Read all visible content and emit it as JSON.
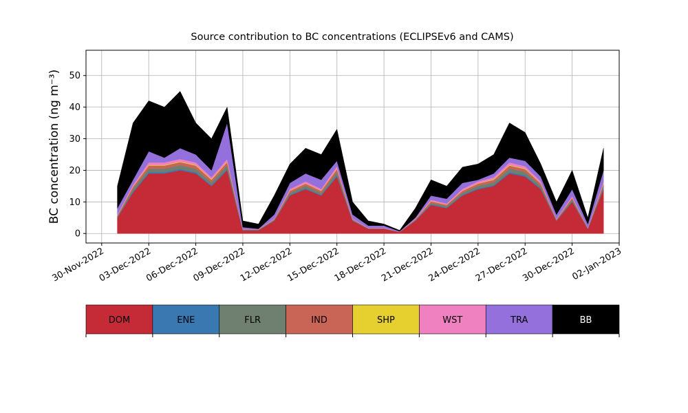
{
  "chart_data": {
    "type": "stacked_area",
    "title": "Source contribution to BC concentrations (ECLIPSEv6 and CAMS)",
    "y_label": "BC concentration (ng m⁻³)",
    "x": [
      "2022-12-01",
      "2022-12-02",
      "2022-12-03",
      "2022-12-04",
      "2022-12-05",
      "2022-12-06",
      "2022-12-07",
      "2022-12-08",
      "2022-12-09",
      "2022-12-10",
      "2022-12-11",
      "2022-12-12",
      "2022-12-13",
      "2022-12-14",
      "2022-12-15",
      "2022-12-16",
      "2022-12-17",
      "2022-12-18",
      "2022-12-19",
      "2022-12-20",
      "2022-12-21",
      "2022-12-22",
      "2022-12-23",
      "2022-12-24",
      "2022-12-25",
      "2022-12-26",
      "2022-12-27",
      "2022-12-28",
      "2022-12-29",
      "2022-12-30",
      "2022-12-31",
      "2023-01-01"
    ],
    "series": [
      {
        "name": "DOM",
        "color": "#c42b37",
        "values": [
          5,
          13,
          19,
          19,
          20,
          19,
          15,
          20,
          1,
          1,
          4,
          12,
          14,
          12,
          18,
          4,
          1.5,
          1.5,
          0.5,
          4,
          9,
          8,
          12,
          14,
          15,
          19,
          18,
          14,
          4,
          10,
          1.5,
          14
        ]
      },
      {
        "name": "ENE",
        "color": "#3a78b1",
        "values": [
          0.1,
          0.3,
          0.4,
          0.4,
          0.4,
          0.4,
          0.3,
          0.4,
          0.1,
          0.1,
          0.1,
          0.2,
          0.3,
          0.2,
          0.4,
          0.1,
          0,
          0,
          0,
          0.1,
          0.2,
          0.2,
          0.2,
          0.3,
          0.3,
          0.4,
          0.4,
          0.3,
          0.1,
          0.2,
          0,
          0.3
        ]
      },
      {
        "name": "FLR",
        "color": "#6f8070",
        "values": [
          0.3,
          0.8,
          1.1,
          1.1,
          1.2,
          1.1,
          0.9,
          1.2,
          0.1,
          0.1,
          0.2,
          0.7,
          0.8,
          0.7,
          1.1,
          0.2,
          0.1,
          0.1,
          0,
          0.2,
          0.5,
          0.5,
          0.7,
          0.8,
          0.9,
          1.1,
          1.1,
          0.8,
          0.2,
          0.6,
          0.1,
          0.8
        ]
      },
      {
        "name": "IND",
        "color": "#c96557",
        "values": [
          0.3,
          0.7,
          1.0,
          1.0,
          1.0,
          1.0,
          0.8,
          1.0,
          0.1,
          0.1,
          0.2,
          0.6,
          0.7,
          0.6,
          0.9,
          0.2,
          0.1,
          0.1,
          0,
          0.2,
          0.5,
          0.4,
          0.6,
          0.7,
          0.8,
          1.0,
          0.9,
          0.7,
          0.2,
          0.5,
          0.1,
          0.7
        ]
      },
      {
        "name": "SHP",
        "color": "#e6d030",
        "values": [
          0.1,
          0.1,
          0.2,
          0.2,
          0.2,
          0.2,
          0.2,
          0.2,
          0,
          0,
          0,
          0.1,
          0.1,
          0.1,
          0.2,
          0,
          0,
          0,
          0,
          0,
          0.1,
          0.1,
          0.1,
          0.1,
          0.2,
          0.2,
          0.2,
          0.1,
          0,
          0.1,
          0,
          0.1
        ]
      },
      {
        "name": "WST",
        "color": "#f081c0",
        "values": [
          0.2,
          0.5,
          0.8,
          0.8,
          0.8,
          0.8,
          0.6,
          0.8,
          0.1,
          0.1,
          0.2,
          0.5,
          0.6,
          0.5,
          0.7,
          0.2,
          0.1,
          0.1,
          0,
          0.2,
          0.4,
          0.3,
          0.5,
          0.6,
          0.6,
          0.8,
          0.7,
          0.6,
          0.2,
          0.4,
          0.1,
          0.6
        ]
      },
      {
        "name": "TRA",
        "color": "#9370db",
        "values": [
          2,
          1.6,
          3.5,
          1.5,
          3.4,
          2.5,
          2.2,
          11.4,
          0.6,
          0.1,
          1.3,
          1.9,
          2.5,
          2.9,
          1.7,
          1.3,
          0.7,
          0.7,
          0.2,
          0.3,
          1.3,
          1.5,
          1.9,
          0.5,
          1.2,
          1.5,
          1.7,
          1.5,
          1.3,
          2.2,
          1.2,
          3.5
        ]
      },
      {
        "name": "BB",
        "color": "#000000",
        "values": [
          7,
          18,
          16,
          16,
          18,
          10,
          10,
          5,
          2,
          1.5,
          6,
          6,
          8,
          8,
          10,
          4,
          1.5,
          0.5,
          0.3,
          3,
          5,
          4,
          5,
          5,
          6,
          11,
          9,
          4,
          4,
          6,
          2,
          7
        ]
      }
    ],
    "xlim": [
      "2022-11-29",
      "2023-01-02"
    ],
    "xticks": [
      {
        "value": "2022-11-30",
        "label": "30-Nov-2022"
      },
      {
        "value": "2022-12-03",
        "label": "03-Dec-2022"
      },
      {
        "value": "2022-12-06",
        "label": "06-Dec-2022"
      },
      {
        "value": "2022-12-09",
        "label": "09-Dec-2022"
      },
      {
        "value": "2022-12-12",
        "label": "12-Dec-2022"
      },
      {
        "value": "2022-12-15",
        "label": "15-Dec-2022"
      },
      {
        "value": "2022-12-18",
        "label": "18-Dec-2022"
      },
      {
        "value": "2022-12-21",
        "label": "21-Dec-2022"
      },
      {
        "value": "2022-12-24",
        "label": "24-Dec-2022"
      },
      {
        "value": "2022-12-27",
        "label": "27-Dec-2022"
      },
      {
        "value": "2022-12-30",
        "label": "30-Dec-2022"
      },
      {
        "value": "2023-01-02",
        "label": "02-Jan-2023"
      }
    ],
    "ylim": [
      -3,
      58
    ],
    "yticks": [
      0,
      10,
      20,
      30,
      40,
      50
    ],
    "grid": true
  }
}
